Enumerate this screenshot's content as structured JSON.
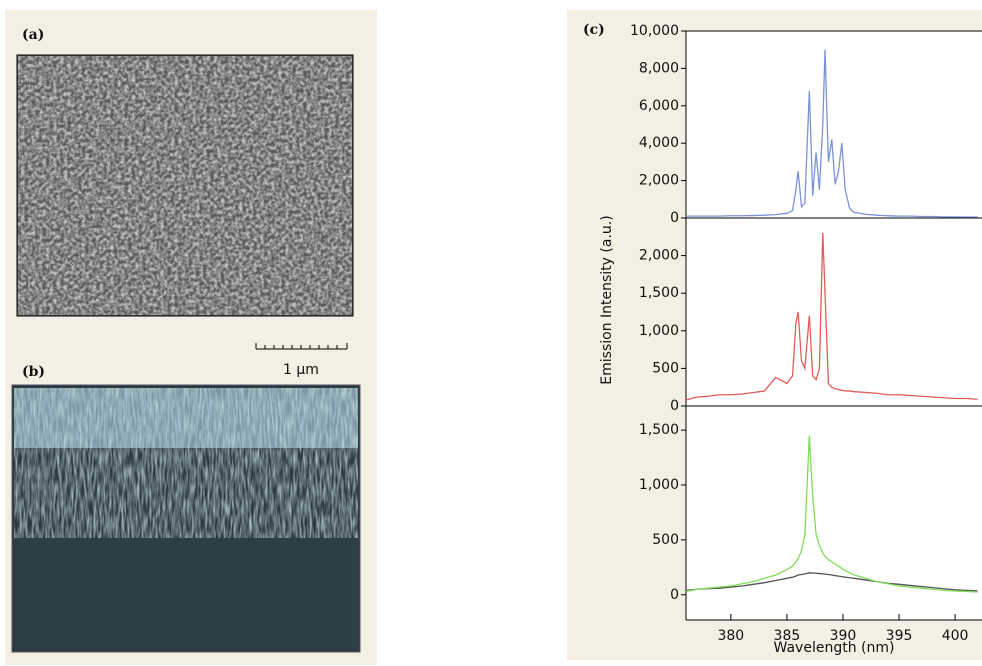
{
  "figure": {
    "labels": [
      "(a)",
      "(b)",
      "(c)"
    ],
    "scale_bar": "1 μm"
  },
  "chart_data": [
    {
      "type": "line",
      "xlim": [
        376,
        402.4
      ],
      "ylim": [
        0,
        10000
      ],
      "yticks": [
        0,
        {
          "value": 2000,
          "label": "2,000"
        },
        {
          "value": 4000,
          "label": "4,000"
        },
        {
          "value": 6000,
          "label": "6,000"
        },
        {
          "value": 8000,
          "label": "8,000"
        },
        {
          "value": 10000,
          "label": "10,000"
        }
      ],
      "x": [
        376,
        377,
        378,
        379,
        380,
        381,
        382,
        383,
        384,
        385,
        385.5,
        385.8,
        386,
        386.3,
        386.6,
        387,
        387.3,
        387.6,
        387.9,
        388.2,
        388.4,
        388.7,
        389,
        389.3,
        389.6,
        389.9,
        390.2,
        390.6,
        391,
        392,
        393,
        394,
        395,
        396,
        397,
        398,
        399,
        400,
        401,
        402
      ],
      "series": [
        {
          "color": "#7b93d6",
          "values": [
            100,
            100,
            100,
            100,
            120,
            120,
            130,
            150,
            180,
            250,
            400,
            1500,
            2500,
            600,
            800,
            6800,
            1200,
            3500,
            1500,
            5000,
            9000,
            3000,
            4200,
            1800,
            2500,
            4000,
            1500,
            500,
            300,
            200,
            150,
            120,
            100,
            100,
            80,
            80,
            60,
            60,
            50,
            50
          ]
        }
      ]
    },
    {
      "type": "line",
      "xlim": [
        376,
        402.4
      ],
      "ylim": [
        0,
        2500
      ],
      "ylabel": "Emission Intensity (a.u.)",
      "yticks": [
        0,
        500,
        {
          "value": 1000,
          "label": "1,000"
        },
        {
          "value": 1500,
          "label": "1,500"
        },
        {
          "value": 2000,
          "label": "2,000"
        }
      ],
      "x": [
        376,
        377,
        378,
        379,
        380,
        381,
        382,
        383,
        384,
        385,
        385.5,
        385.8,
        386,
        386.3,
        386.6,
        387,
        387.3,
        387.6,
        387.9,
        388.2,
        388.4,
        388.7,
        389,
        389.3,
        389.6,
        389.9,
        390.2,
        390.6,
        391,
        392,
        393,
        394,
        395,
        396,
        397,
        398,
        399,
        400,
        401,
        402
      ],
      "series": [
        {
          "color": "#e25a5a",
          "values": [
            80,
            120,
            130,
            150,
            150,
            160,
            180,
            200,
            380,
            300,
            400,
            1100,
            1250,
            600,
            500,
            1200,
            400,
            350,
            500,
            2300,
            1500,
            300,
            250,
            230,
            220,
            210,
            200,
            200,
            190,
            180,
            170,
            150,
            150,
            140,
            130,
            120,
            110,
            100,
            100,
            90
          ]
        }
      ]
    },
    {
      "type": "line",
      "xlim": [
        376,
        402.4
      ],
      "ylim": [
        -230,
        1720
      ],
      "xlabel": "Wavelength (nm)",
      "xticks": [
        380,
        385,
        390,
        395,
        400
      ],
      "yticks": [
        0,
        500,
        {
          "value": 1000,
          "label": "1,000"
        },
        {
          "value": 1500,
          "label": "1,500"
        }
      ],
      "x": [
        376,
        377,
        378,
        379,
        380,
        381,
        382,
        383,
        384,
        385,
        385.5,
        385.8,
        386,
        386.3,
        386.6,
        387,
        387.3,
        387.6,
        387.9,
        388.2,
        388.4,
        388.7,
        389,
        389.3,
        389.6,
        389.9,
        390.2,
        390.6,
        391,
        392,
        393,
        394,
        395,
        396,
        397,
        398,
        399,
        400,
        401,
        402
      ],
      "series": [
        {
          "color": "#555555",
          "values": [
            40,
            50,
            55,
            60,
            70,
            80,
            95,
            110,
            130,
            150,
            160,
            170,
            180,
            185,
            190,
            200,
            198,
            196,
            193,
            190,
            188,
            185,
            180,
            175,
            170,
            165,
            160,
            155,
            150,
            135,
            120,
            105,
            95,
            85,
            75,
            65,
            55,
            45,
            40,
            35
          ]
        },
        {
          "color": "#7fdc5a",
          "values": [
            30,
            50,
            60,
            70,
            80,
            100,
            120,
            150,
            180,
            230,
            260,
            300,
            330,
            400,
            550,
            1450,
            900,
            550,
            450,
            380,
            350,
            320,
            300,
            280,
            260,
            240,
            220,
            200,
            180,
            150,
            120,
            100,
            80,
            70,
            60,
            50,
            40,
            35,
            30,
            25
          ]
        }
      ]
    }
  ]
}
